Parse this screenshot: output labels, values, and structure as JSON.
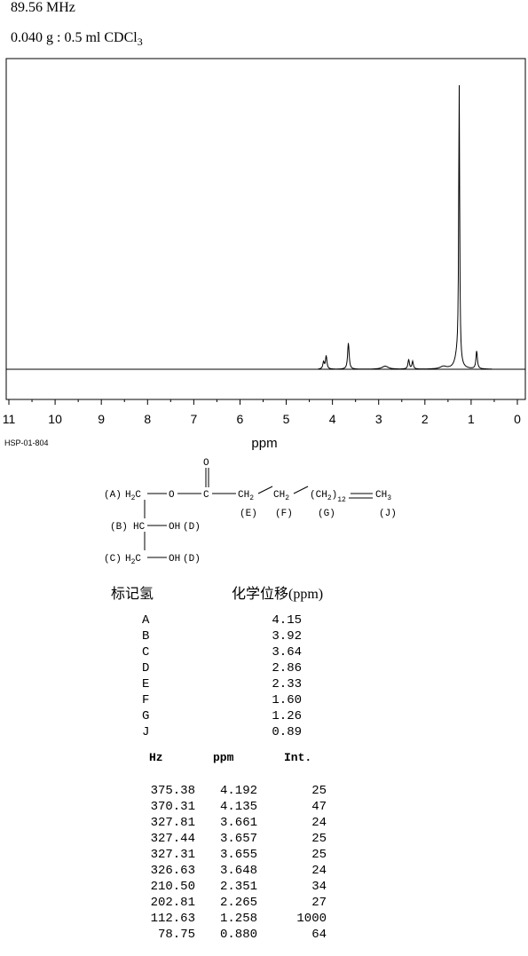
{
  "header": {
    "frequency": "89.56 MHz",
    "sample_main": "0.040 g : 0.5 ml CDCl",
    "sample_sub": "3"
  },
  "chart_data": {
    "type": "line",
    "xlabel": "ppm",
    "ylabel": "",
    "xlim": [
      11,
      0
    ],
    "x_direction": "reversed",
    "xticks": [
      "11",
      "10",
      "9",
      "8",
      "7",
      "6",
      "5",
      "4",
      "3",
      "2",
      "1",
      "0"
    ],
    "grid": false,
    "peaks": [
      {
        "ppm": 4.192,
        "intensity": 25
      },
      {
        "ppm": 4.135,
        "intensity": 47
      },
      {
        "ppm": 3.661,
        "intensity": 24
      },
      {
        "ppm": 3.657,
        "intensity": 25
      },
      {
        "ppm": 3.655,
        "intensity": 25
      },
      {
        "ppm": 3.648,
        "intensity": 24
      },
      {
        "ppm": 2.351,
        "intensity": 34
      },
      {
        "ppm": 2.265,
        "intensity": 27
      },
      {
        "ppm": 1.258,
        "intensity": 1000
      },
      {
        "ppm": 0.88,
        "intensity": 64
      }
    ],
    "broad_features": [
      {
        "ppm": 2.86,
        "intensity": 18
      },
      {
        "ppm": 1.6,
        "intensity": 15
      }
    ]
  },
  "spectrum_code": "HSP-01-804",
  "structure": {
    "labels": {
      "A": "(A)",
      "B": "(B)",
      "C": "(C)",
      "D1": "(D)",
      "D2": "(D)",
      "E": "(E)",
      "F": "(F)",
      "G": "(G)",
      "J": "(J)"
    },
    "atoms": {
      "H2C_A": "H",
      "H2C_A_sub": "2",
      "H2C_A_c": "C",
      "O_ester": "O",
      "C_carbonyl": "C",
      "O_carbonyl": "O",
      "CH2_E": "CH",
      "CH2_E_sub": "2",
      "CH2_F": "CH",
      "CH2_F_sub": "2",
      "CH2_G": "(CH",
      "CH2_G_sub": "2",
      "CH2_G_close": ")",
      "CH2_G_n": "12",
      "CH3_J": "CH",
      "CH3_J_sub": "3",
      "HC_B": "HC",
      "OH_B": "OH",
      "H2C_C": "H",
      "H2C_C_sub": "2",
      "H2C_C_c": "C",
      "OH_C": "OH"
    }
  },
  "assignment": {
    "header_label": "标记氢",
    "header_shift": "化学位移(ppm)",
    "rows": [
      {
        "label": "A",
        "shift": "4.15"
      },
      {
        "label": "B",
        "shift": "3.92"
      },
      {
        "label": "C",
        "shift": "3.64"
      },
      {
        "label": "D",
        "shift": "2.86"
      },
      {
        "label": "E",
        "shift": "2.33"
      },
      {
        "label": "F",
        "shift": "1.60"
      },
      {
        "label": "G",
        "shift": "1.26"
      },
      {
        "label": "J",
        "shift": "0.89"
      }
    ]
  },
  "peak_table": {
    "headers": [
      "Hz",
      "ppm",
      "Int."
    ],
    "rows": [
      [
        "375.38",
        "4.192",
        "25"
      ],
      [
        "370.31",
        "4.135",
        "47"
      ],
      [
        "327.81",
        "3.661",
        "24"
      ],
      [
        "327.44",
        "3.657",
        "25"
      ],
      [
        "327.31",
        "3.655",
        "25"
      ],
      [
        "326.63",
        "3.648",
        "24"
      ],
      [
        "210.50",
        "2.351",
        "34"
      ],
      [
        "202.81",
        "2.265",
        "27"
      ],
      [
        "112.63",
        "1.258",
        "1000"
      ],
      [
        "78.75",
        "0.880",
        "64"
      ]
    ]
  }
}
